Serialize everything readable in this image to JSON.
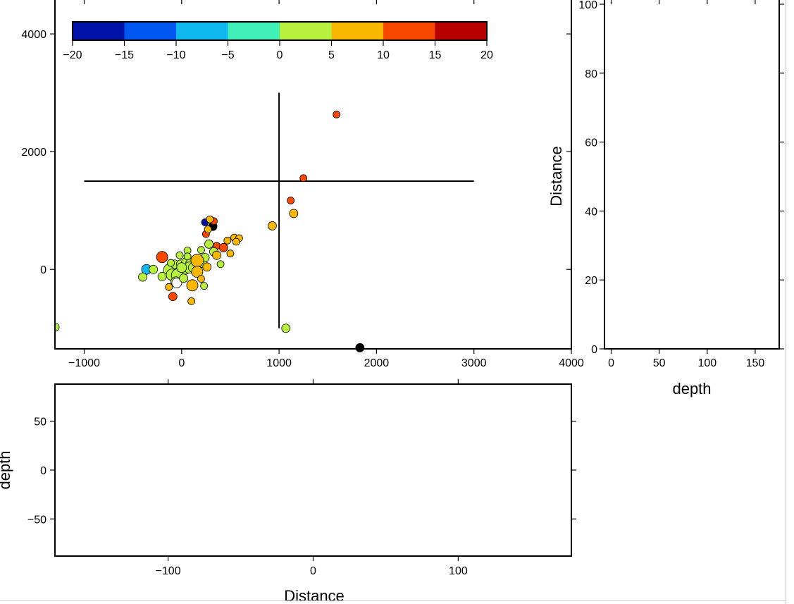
{
  "chart_data": [
    {
      "id": "map",
      "type": "scatter",
      "title": "",
      "xlabel": "",
      "ylabel": "",
      "xlim": [
        -1300,
        4000
      ],
      "ylim": [
        -1350,
        4600
      ],
      "xticks": [
        -1000,
        0,
        1000,
        2000,
        3000,
        4000
      ],
      "yticks": [
        0,
        2000,
        4000
      ],
      "profile_lines": [
        {
          "x": [
            -1000,
            3000
          ],
          "y": [
            1500,
            1500
          ]
        },
        {
          "x": [
            1000,
            1000
          ],
          "y": [
            -1000,
            3000
          ]
        }
      ],
      "colorbar": {
        "ticks": [
          -20,
          -15,
          -10,
          -5,
          0,
          5,
          10,
          15,
          20
        ],
        "colors": [
          "#0012a8",
          "#0058f0",
          "#10b8f0",
          "#40f0b8",
          "#b8f040",
          "#f8b800",
          "#f84800",
          "#b80000"
        ]
      },
      "points": [
        {
          "x": 1590,
          "y": 2630,
          "v": 12,
          "s": 5
        },
        {
          "x": 1250,
          "y": 1550,
          "v": 12,
          "s": 5
        },
        {
          "x": 1120,
          "y": 1170,
          "v": 12,
          "s": 5
        },
        {
          "x": 1150,
          "y": 950,
          "v": 7,
          "s": 6
        },
        {
          "x": 930,
          "y": 740,
          "v": 7,
          "s": 6
        },
        {
          "x": 1070,
          "y": -1000,
          "v": 3,
          "s": 6
        },
        {
          "x": -1300,
          "y": -980,
          "v": 3,
          "s": 6
        },
        {
          "x": 1830,
          "y": -1330,
          "v": null,
          "s": 6
        },
        {
          "x": 320,
          "y": 730,
          "v": null,
          "s": 6
        },
        {
          "x": 240,
          "y": 800,
          "v": -18,
          "s": 5
        },
        {
          "x": 330,
          "y": 820,
          "v": 12,
          "s": 5
        },
        {
          "x": 290,
          "y": 850,
          "v": 7,
          "s": 5
        },
        {
          "x": 250,
          "y": 600,
          "v": 12,
          "s": 5
        },
        {
          "x": 270,
          "y": 680,
          "v": 7,
          "s": 5
        },
        {
          "x": 360,
          "y": 400,
          "v": 12,
          "s": 5
        },
        {
          "x": 430,
          "y": 370,
          "v": 12,
          "s": 6
        },
        {
          "x": 280,
          "y": 430,
          "v": 3,
          "s": 6
        },
        {
          "x": 470,
          "y": 490,
          "v": 7,
          "s": 5
        },
        {
          "x": 540,
          "y": 540,
          "v": 7,
          "s": 5
        },
        {
          "x": 590,
          "y": 530,
          "v": 7,
          "s": 5
        },
        {
          "x": 560,
          "y": 470,
          "v": 7,
          "s": 5
        },
        {
          "x": 500,
          "y": 270,
          "v": 7,
          "s": 5
        },
        {
          "x": 400,
          "y": 90,
          "v": 3,
          "s": 5
        },
        {
          "x": 330,
          "y": 300,
          "v": 3,
          "s": 6
        },
        {
          "x": 360,
          "y": 240,
          "v": 7,
          "s": 6
        },
        {
          "x": -200,
          "y": 210,
          "v": 12,
          "s": 8
        },
        {
          "x": -360,
          "y": 0,
          "v": -8,
          "s": 7
        },
        {
          "x": -400,
          "y": -130,
          "v": 3,
          "s": 6
        },
        {
          "x": -290,
          "y": 0,
          "v": 3,
          "s": 6
        },
        {
          "x": -120,
          "y": -10,
          "v": 3,
          "s": 9
        },
        {
          "x": -100,
          "y": -90,
          "v": 3,
          "s": 8
        },
        {
          "x": -40,
          "y": -100,
          "v": 3,
          "s": 9
        },
        {
          "x": -70,
          "y": 90,
          "v": 3,
          "s": 6
        },
        {
          "x": -10,
          "y": 90,
          "v": 3,
          "s": 6
        },
        {
          "x": 50,
          "y": 120,
          "v": 3,
          "s": 7
        },
        {
          "x": 100,
          "y": 100,
          "v": 3,
          "s": 8
        },
        {
          "x": 150,
          "y": 90,
          "v": 3,
          "s": 7
        },
        {
          "x": 40,
          "y": -10,
          "v": 3,
          "s": 6
        },
        {
          "x": 80,
          "y": 30,
          "v": 3,
          "s": 8
        },
        {
          "x": 120,
          "y": 30,
          "v": 3,
          "s": 7
        },
        {
          "x": 220,
          "y": 100,
          "v": 3,
          "s": 6
        },
        {
          "x": 240,
          "y": 200,
          "v": 3,
          "s": 6
        },
        {
          "x": 160,
          "y": 150,
          "v": 7,
          "s": 9
        },
        {
          "x": 160,
          "y": -40,
          "v": 7,
          "s": 8
        },
        {
          "x": 260,
          "y": 40,
          "v": 7,
          "s": 6
        },
        {
          "x": 200,
          "y": 330,
          "v": 3,
          "s": 5
        },
        {
          "x": 60,
          "y": 320,
          "v": 3,
          "s": 5
        },
        {
          "x": -20,
          "y": 240,
          "v": 3,
          "s": 5
        },
        {
          "x": -130,
          "y": -300,
          "v": 7,
          "s": 5
        },
        {
          "x": -60,
          "y": -210,
          "v": 3,
          "s": 7
        },
        {
          "x": -50,
          "y": -230,
          "v": null,
          "s": 7,
          "white": true
        },
        {
          "x": 110,
          "y": -270,
          "v": 7,
          "s": 8
        },
        {
          "x": 230,
          "y": -280,
          "v": 3,
          "s": 5
        },
        {
          "x": 200,
          "y": -160,
          "v": 7,
          "s": 5
        },
        {
          "x": -90,
          "y": -460,
          "v": 12,
          "s": 6
        },
        {
          "x": 100,
          "y": -540,
          "v": 7,
          "s": 5
        },
        {
          "x": -200,
          "y": -120,
          "v": 3,
          "s": 6
        },
        {
          "x": 20,
          "y": -150,
          "v": 3,
          "s": 6
        },
        {
          "x": 0,
          "y": 30,
          "v": 3,
          "s": 7
        },
        {
          "x": -110,
          "y": 110,
          "v": 3,
          "s": 5
        },
        {
          "x": 60,
          "y": 220,
          "v": 3,
          "s": 5
        }
      ]
    },
    {
      "id": "side-panel",
      "type": "scatter",
      "xlabel": "depth",
      "ylabel": "Distance",
      "xlim": [
        -7,
        175
      ],
      "ylim": [
        0,
        100
      ],
      "xticks": [
        0,
        50,
        100,
        150
      ],
      "yticks": [
        0,
        20,
        40,
        60,
        80,
        100
      ],
      "points": []
    },
    {
      "id": "bottom-panel",
      "type": "scatter",
      "xlabel": "Distance",
      "ylabel": "depth",
      "xlim": [
        -178,
        178
      ],
      "ylim": [
        -88,
        88
      ],
      "xticks": [
        -100,
        0,
        100
      ],
      "yticks": [
        -50,
        0,
        50
      ],
      "points": []
    }
  ]
}
